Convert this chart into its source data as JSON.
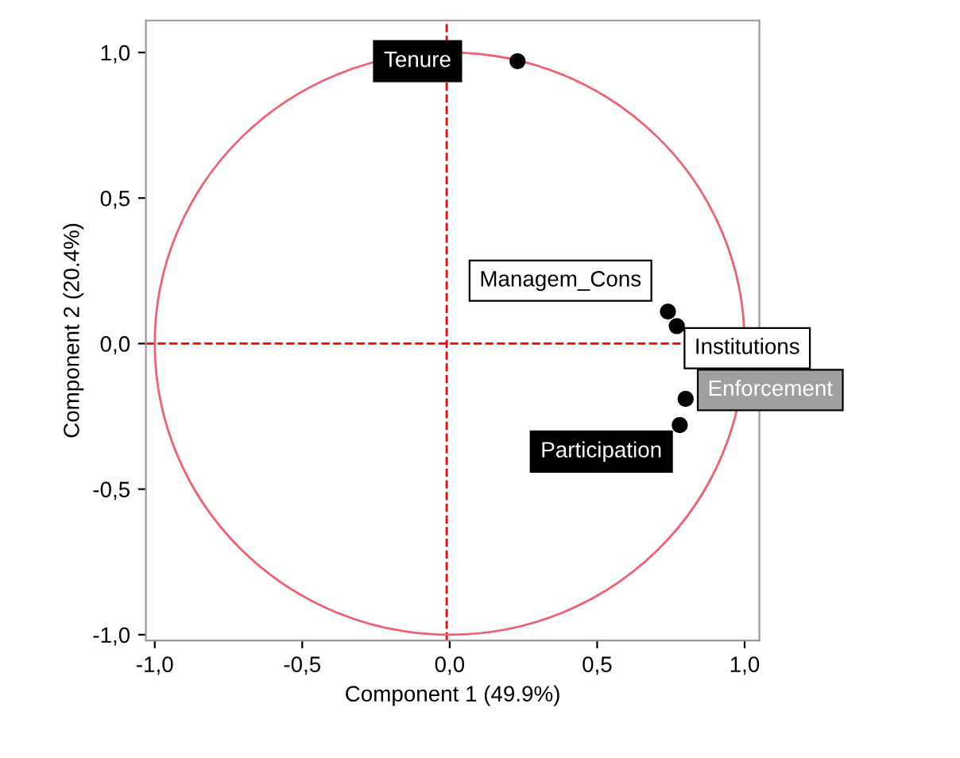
{
  "chart_data": {
    "type": "scatter",
    "xlabel": "Component 1 (49.9%)",
    "ylabel": "Component 2 (20.4%)",
    "xlim": [
      -1.03,
      1.05
    ],
    "ylim": [
      -1.02,
      1.11
    ],
    "xticks": [
      {
        "value": -1.0,
        "label": "-1,0"
      },
      {
        "value": -0.5,
        "label": "-0,5"
      },
      {
        "value": 0.0,
        "label": "0,0"
      },
      {
        "value": 0.5,
        "label": "0,5"
      },
      {
        "value": 1.0,
        "label": "1,0"
      }
    ],
    "yticks": [
      {
        "value": -1.0,
        "label": "-1,0"
      },
      {
        "value": -0.5,
        "label": "-0,5"
      },
      {
        "value": 0.0,
        "label": "0,0"
      },
      {
        "value": 0.5,
        "label": "0,5"
      },
      {
        "value": 1.0,
        "label": "1,0"
      }
    ],
    "grid": false,
    "legend": false,
    "marker": "circle",
    "ref_lines": [
      {
        "axis": "x",
        "value": -0.01,
        "color": "#ff0000",
        "line_style": "dashed"
      },
      {
        "axis": "y",
        "value": 0,
        "color": "#ff0000",
        "line_style": "dashed"
      }
    ],
    "series": [
      {
        "name": "Tenure",
        "color": "#000000",
        "x": [
          0.23
        ],
        "values": [
          0.97
        ]
      },
      {
        "name": "Managem_Cons",
        "color": "#000000",
        "x": [
          0.74
        ],
        "values": [
          0.11
        ]
      },
      {
        "name": "Institutions",
        "color": "#000000",
        "x": [
          0.77
        ],
        "values": [
          0.06
        ]
      },
      {
        "name": "Enforcement",
        "color": "#000000",
        "x": [
          0.8
        ],
        "values": [
          -0.19
        ]
      },
      {
        "name": "Participation",
        "color": "#000000",
        "x": [
          0.78
        ],
        "values": [
          -0.28
        ]
      }
    ]
  }
}
